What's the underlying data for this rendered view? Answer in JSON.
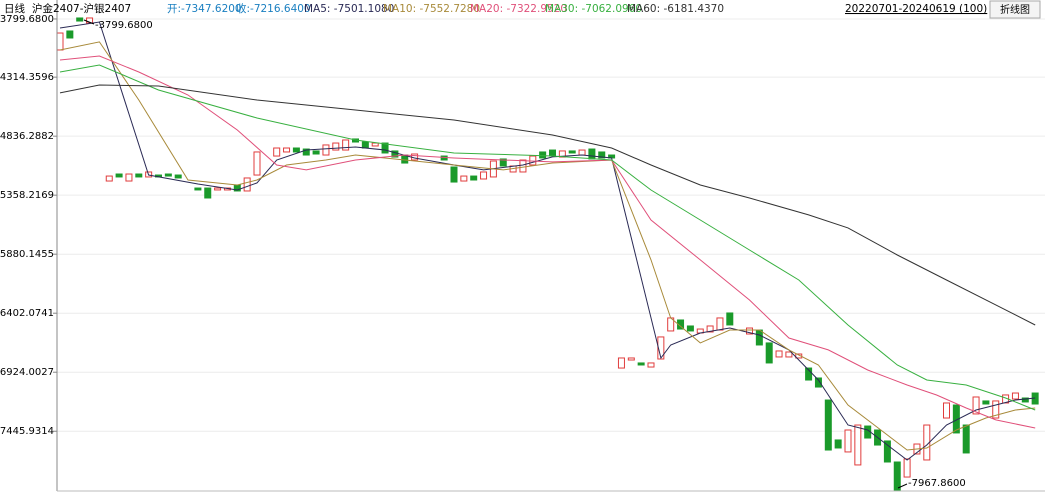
{
  "chart_data": {
    "type": "candlestick",
    "period": "日线",
    "symbol": "沪金2407-沪银2407",
    "open_text": "开:-7347.6200",
    "close_text": "收:-7216.6400",
    "info_color": "#1a7fc0",
    "date_range": "20220701-20240619 (100)",
    "button": "折线图",
    "high_label": "-3799.6800",
    "low_label": "-7967.8600",
    "up_color": "#e03c3c",
    "down_color": "#1a9a2a",
    "ylim": [
      -8001,
      -3632
    ],
    "yticks": [
      {
        "value": -3799.68,
        "label": "-3799.6800"
      },
      {
        "value": -4314.3596,
        "label": "-4314.3596"
      },
      {
        "value": -4836.2882,
        "label": "-4836.2882"
      },
      {
        "value": -5358.2169,
        "label": "-5358.2169"
      },
      {
        "value": -5880.1455,
        "label": "-5880.1455"
      },
      {
        "value": -6402.0741,
        "label": "-6402.0741"
      },
      {
        "value": -6924.0027,
        "label": "-6924.0027"
      },
      {
        "value": -7445.9314,
        "label": "-7445.9314"
      }
    ],
    "grid": true,
    "open": [
      -4074,
      -3906,
      -3791,
      -3835,
      null,
      -5233,
      -5171,
      -5233,
      -5171,
      -5197,
      -5180,
      -5171,
      -5180,
      null,
      -5295,
      -5295,
      -5312,
      -5312,
      -5268,
      -5321,
      -5180,
      null,
      -5012,
      -4976,
      -4941,
      -4950,
      -4967,
      -5003,
      -4959,
      -4959,
      -4861,
      -4888,
      -4923,
      -4897,
      -4967,
      -5003,
      -5047,
      null,
      null,
      -5012,
      -5109,
      -5233,
      -5189,
      -5215,
      -5197,
      -5038,
      -5153,
      -5153,
      -5091,
      -4976,
      -4959,
      -5021,
      -4967,
      -5003,
      -4950,
      -4976,
      -5003,
      -6887,
      -6816,
      -6842,
      -6878,
      -6807,
      -6559,
      -6462,
      -6515,
      -6577,
      -6568,
      -6551,
      -6400,
      null,
      -6586,
      -6551,
      -6665,
      -6789,
      -6789,
      -6798,
      -6887,
      -6975,
      -7170,
      -7523,
      -7629,
      -7744,
      -7400,
      -7435,
      -7532,
      -7718,
      -7851,
      -7647,
      -7700,
      null,
      -7329,
      -7214,
      -7391,
      -7293,
      -7178,
      -7329,
      -7196,
      -7161,
      -7152,
      -7108
    ],
    "close": [
      -3924,
      -3968,
      -3818,
      -3791,
      null,
      -5189,
      -5197,
      -5171,
      -5197,
      -5153,
      -5197,
      -5189,
      -5206,
      null,
      -5312,
      -5383,
      -5295,
      -5295,
      -5321,
      -5206,
      -4976,
      null,
      -4941,
      -4941,
      -4976,
      -5003,
      -4994,
      -4914,
      -4897,
      -4870,
      -4888,
      -4941,
      -4897,
      -4985,
      -5021,
      -5074,
      -4994,
      null,
      null,
      -5047,
      -5242,
      -5189,
      -5224,
      -5153,
      -5056,
      -5100,
      -5100,
      -5047,
      -5012,
      -5029,
      -5012,
      -4967,
      -4985,
      -4959,
      -5038,
      -5029,
      -5029,
      -6798,
      -6798,
      -6860,
      -6842,
      -6612,
      -6444,
      -6542,
      -6559,
      -6542,
      -6515,
      -6444,
      -6506,
      null,
      -6533,
      -6683,
      -6842,
      -6736,
      -6745,
      -6763,
      -6993,
      -7055,
      -7612,
      -7594,
      -7435,
      -7391,
      -7506,
      -7568,
      -7718,
      -7966,
      -7691,
      -7559,
      -7391,
      null,
      -7196,
      -7461,
      -7638,
      -7143,
      -7205,
      -7178,
      -7125,
      -7108,
      -7187,
      -7205
    ],
    "series": [
      {
        "legend": "MA5: -7501.1080",
        "color": "#2a2a55",
        "x": [
          0,
          4,
          9,
          14,
          18,
          20,
          22,
          25,
          30,
          33,
          36,
          40,
          43,
          47,
          50,
          53,
          56,
          61,
          62,
          65,
          68,
          71,
          74,
          77,
          80,
          82,
          84,
          86,
          88,
          90,
          93,
          95,
          97,
          99
        ],
        "values": [
          -3880,
          -3827,
          -5180,
          -5259,
          -5312,
          -5250,
          -5047,
          -4959,
          -4932,
          -4959,
          -5029,
          -5091,
          -5135,
          -5091,
          -5020,
          -5003,
          -5029,
          -6798,
          -6683,
          -6577,
          -6533,
          -6595,
          -6727,
          -6993,
          -7391,
          -7435,
          -7568,
          -7700,
          -7568,
          -7391,
          -7258,
          -7214,
          -7170,
          -7152
        ]
      },
      {
        "legend": "MA10: -7552.7280",
        "color": "#a88a3a",
        "x": [
          0,
          4,
          8,
          13,
          18,
          20,
          23,
          27,
          30,
          35,
          40,
          45,
          50,
          56,
          60,
          62,
          65,
          68,
          71,
          74,
          77,
          80,
          84,
          86,
          88,
          91,
          94,
          97,
          99
        ],
        "values": [
          -4074,
          -4003,
          -4516,
          -5224,
          -5268,
          -5224,
          -5091,
          -5047,
          -5003,
          -5047,
          -5091,
          -5135,
          -5074,
          -5047,
          -5931,
          -6444,
          -6665,
          -6551,
          -6551,
          -6727,
          -6860,
          -7214,
          -7479,
          -7612,
          -7594,
          -7435,
          -7329,
          -7258,
          -7240
        ]
      },
      {
        "legend": "MA20: -7322.9520",
        "color": "#e0507a",
        "x": [
          0,
          4,
          8,
          13,
          18,
          22,
          25,
          30,
          35,
          40,
          45,
          50,
          56,
          60,
          65,
          70,
          74,
          78,
          82,
          86,
          89,
          92,
          95,
          99
        ],
        "values": [
          -4163,
          -4127,
          -4269,
          -4472,
          -4782,
          -5091,
          -5135,
          -5047,
          -5003,
          -5029,
          -5047,
          -5064,
          -5047,
          -5578,
          -5931,
          -6285,
          -6621,
          -6727,
          -6904,
          -7037,
          -7125,
          -7240,
          -7346,
          -7417
        ]
      },
      {
        "legend": "MA30: -7062.0960",
        "color": "#38b040",
        "x": [
          0,
          4,
          10,
          20,
          30,
          40,
          50,
          56,
          60,
          65,
          70,
          75,
          80,
          85,
          88,
          92,
          96,
          99
        ],
        "values": [
          -4269,
          -4207,
          -4428,
          -4676,
          -4870,
          -4985,
          -5012,
          -5047,
          -5312,
          -5578,
          -5843,
          -6108,
          -6506,
          -6860,
          -6993,
          -7037,
          -7152,
          -7258
        ]
      },
      {
        "legend": "MA60: -6181.4370",
        "color": "#333333",
        "x": [
          0,
          4,
          10,
          20,
          30,
          40,
          50,
          56,
          60,
          65,
          70,
          76,
          80,
          85,
          90,
          95,
          99
        ],
        "values": [
          -4454,
          -4384,
          -4393,
          -4516,
          -4605,
          -4693,
          -4826,
          -4941,
          -5091,
          -5268,
          -5383,
          -5533,
          -5648,
          -5887,
          -6108,
          -6329,
          -6506
        ]
      }
    ]
  }
}
